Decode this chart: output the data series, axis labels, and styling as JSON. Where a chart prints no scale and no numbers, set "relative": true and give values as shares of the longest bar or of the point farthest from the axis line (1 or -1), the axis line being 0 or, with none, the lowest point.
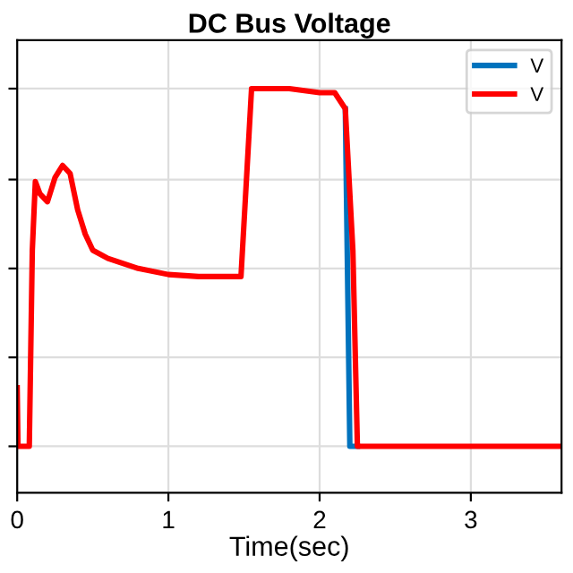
{
  "chart_data": {
    "type": "line",
    "title": "DC Bus Voltage",
    "xlabel": "Time(sec)",
    "relative": true,
    "xlim": [
      0,
      3.6
    ],
    "xticks": [
      0,
      1,
      2,
      3
    ],
    "grid": true,
    "legend": "top right",
    "tick_labels": "x",
    "series": [
      {
        "name": "V",
        "color": "#0072bd",
        "x": [
          2.17,
          2.2,
          2.25
        ],
        "values": [
          0.95,
          0.115,
          0.115
        ]
      },
      {
        "name": "V",
        "color": "#ff0000",
        "x": [
          0,
          0.005,
          0.08,
          0.1,
          0.12,
          0.15,
          0.2,
          0.25,
          0.3,
          0.35,
          0.4,
          0.45,
          0.5,
          0.6,
          0.8,
          1.0,
          1.2,
          1.4,
          1.48,
          1.52,
          1.55,
          1.8,
          2.0,
          2.1,
          2.17,
          2.22,
          2.25,
          3.6
        ],
        "values": [
          0.26,
          0.115,
          0.115,
          0.6,
          0.77,
          0.74,
          0.72,
          0.78,
          0.81,
          0.79,
          0.7,
          0.64,
          0.6,
          0.58,
          0.555,
          0.54,
          0.535,
          0.535,
          0.535,
          0.8,
          1.0,
          1.0,
          0.99,
          0.99,
          0.95,
          0.6,
          0.115,
          0.115
        ]
      }
    ]
  }
}
